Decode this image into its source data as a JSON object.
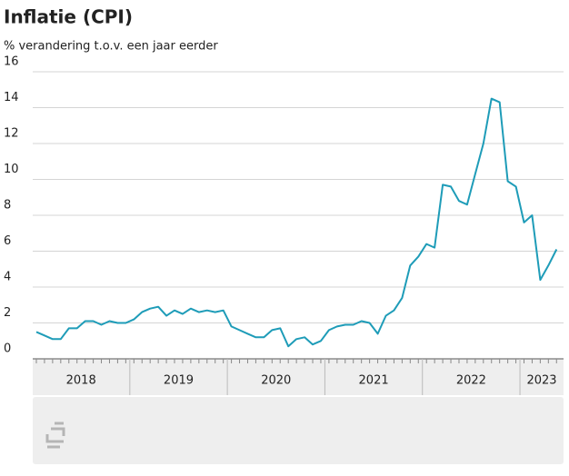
{
  "chart_data": {
    "type": "line",
    "title": "Inflatie (CPI)",
    "subtitle": "% verandering t.o.v. een jaar eerder",
    "color": "#1e9cb8",
    "ylim": [
      0,
      16
    ],
    "yticks": [
      0,
      2,
      4,
      6,
      8,
      10,
      12,
      14,
      16
    ],
    "grid": true,
    "years": [
      {
        "label": "2018",
        "values": [
          1.5,
          1.3,
          1.1,
          1.1,
          1.7,
          1.7,
          2.1,
          2.1,
          1.9,
          2.1,
          2.0,
          2.0
        ]
      },
      {
        "label": "2019",
        "values": [
          2.2,
          2.6,
          2.8,
          2.9,
          2.4,
          2.7,
          2.5,
          2.8,
          2.6,
          2.7,
          2.6,
          2.7
        ]
      },
      {
        "label": "2020",
        "values": [
          1.8,
          1.6,
          1.4,
          1.2,
          1.2,
          1.6,
          1.7,
          0.7,
          1.1,
          1.2,
          0.8,
          1.0
        ]
      },
      {
        "label": "2021",
        "values": [
          1.6,
          1.8,
          1.9,
          1.9,
          2.1,
          2.0,
          1.4,
          2.4,
          2.7,
          3.4,
          5.2,
          5.7
        ]
      },
      {
        "label": "2022",
        "values": [
          6.4,
          6.2,
          9.7,
          9.6,
          8.8,
          8.6,
          10.3,
          12.0,
          14.5,
          14.3,
          9.9,
          9.6
        ]
      },
      {
        "label": "2023",
        "values": [
          7.6,
          8.0,
          4.4,
          5.2,
          6.1
        ]
      }
    ]
  }
}
